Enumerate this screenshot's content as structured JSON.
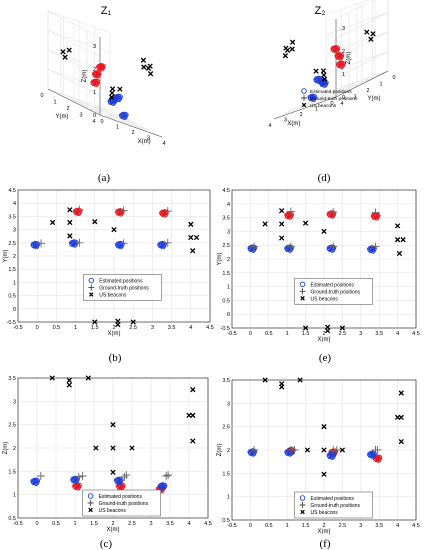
{
  "figure": {
    "panels": [
      {
        "id": "a",
        "caption": "(a)",
        "title": "Z₁",
        "axes": {
          "x": "X(m)",
          "y": "Y(m)",
          "z": "Z(m)"
        },
        "ticks": {
          "z": [
            "0",
            "1",
            "2",
            "3"
          ],
          "y": [
            "4",
            "3",
            "2",
            "1",
            "0"
          ],
          "x": [
            "0",
            "1",
            "2",
            "3",
            "4"
          ]
        }
      },
      {
        "id": "d",
        "caption": "(d)",
        "title": "Z₂",
        "axes": {
          "x": "X(m)",
          "y": "Y(m)",
          "z": "Z(m)"
        },
        "ticks": {
          "z": [
            "0",
            "1",
            "2",
            "3"
          ],
          "y": [
            "4",
            "3",
            "2",
            "1",
            "0"
          ],
          "x": [
            "0",
            "1",
            "2",
            "3",
            "4"
          ]
        }
      }
    ],
    "legend": {
      "estimated": "Estimated positions",
      "ground_truth": "Ground-truth positions",
      "beacons": "US beacons"
    },
    "colors": {
      "red": "#e8141e",
      "blue": "#1f3fd6",
      "black": "#000000",
      "grid": "#e3e3e3"
    }
  },
  "chart_data": [
    {
      "type": "scatter",
      "panel": "b",
      "caption": "(b)",
      "xlabel": "X(m)",
      "ylabel": "Y(m)",
      "xlim": [
        -0.5,
        4.5
      ],
      "ylim": [
        -0.5,
        4.5
      ],
      "xticks": [
        "-0.5",
        "0",
        "0.5",
        "1",
        "1.5",
        "2",
        "2.5",
        "3",
        "3.5",
        "4",
        "4.5"
      ],
      "yticks": [
        "-0.5",
        "0",
        "0.5",
        "1",
        "1.5",
        "2",
        "2.5",
        "3",
        "3.5",
        "4",
        "4.5"
      ],
      "series": [
        {
          "name": "Estimated positions",
          "color": "red",
          "clusters": [
            [
              1.05,
              3.68
            ],
            [
              2.15,
              3.66
            ],
            [
              3.3,
              3.62
            ]
          ]
        },
        {
          "name": "Estimated positions",
          "color": "blue",
          "clusters": [
            [
              -0.05,
              2.42
            ],
            [
              0.95,
              2.48
            ],
            [
              2.15,
              2.42
            ],
            [
              3.25,
              2.42
            ]
          ]
        },
        {
          "name": "Ground-truth positions",
          "points": [
            [
              0.1,
              2.48
            ],
            [
              1.1,
              3.75
            ],
            [
              1.1,
              2.5
            ],
            [
              2.25,
              3.72
            ],
            [
              2.25,
              2.48
            ],
            [
              3.4,
              3.7
            ],
            [
              3.4,
              2.5
            ]
          ]
        },
        {
          "name": "US beacons",
          "points": [
            [
              0.4,
              3.27
            ],
            [
              0.85,
              3.75
            ],
            [
              0.85,
              3.27
            ],
            [
              0.85,
              2.76
            ],
            [
              1.5,
              3.3
            ],
            [
              2.0,
              3.0
            ],
            [
              1.5,
              -0.5
            ],
            [
              2.1,
              -0.47
            ],
            [
              2.1,
              -0.6
            ],
            [
              2.5,
              -0.5
            ],
            [
              4.0,
              3.2
            ],
            [
              4.0,
              2.7
            ],
            [
              4.15,
              2.7
            ],
            [
              4.05,
              2.2
            ]
          ]
        }
      ],
      "legend_position": "lower-middle"
    },
    {
      "type": "scatter",
      "panel": "e",
      "caption": "(e)",
      "xlabel": "X(m)",
      "ylabel": "Y(m)",
      "xlim": [
        -0.5,
        4.5
      ],
      "ylim": [
        -0.5,
        4.5
      ],
      "xticks": [
        "-0.5",
        "0",
        "0.5",
        "1",
        "1.5",
        "2",
        "2.5",
        "3",
        "3.5",
        "4",
        "4.5"
      ],
      "yticks": [
        "-0.5",
        "0",
        "0.5",
        "1",
        "1.5",
        "2",
        "2.5",
        "3",
        "3.5",
        "4",
        "4.5"
      ],
      "series": [
        {
          "name": "Estimated positions",
          "color": "red",
          "clusters": [
            [
              1.05,
              3.58
            ],
            [
              2.2,
              3.62
            ],
            [
              3.4,
              3.55
            ]
          ]
        },
        {
          "name": "Estimated positions",
          "color": "blue",
          "clusters": [
            [
              0.05,
              2.38
            ],
            [
              1.05,
              2.38
            ],
            [
              2.2,
              2.38
            ],
            [
              3.3,
              2.35
            ]
          ]
        },
        {
          "name": "Ground-truth positions",
          "points": [
            [
              0.1,
              2.45
            ],
            [
              1.1,
              3.72
            ],
            [
              1.1,
              2.45
            ],
            [
              2.25,
              3.7
            ],
            [
              2.25,
              2.45
            ],
            [
              3.4,
              3.68
            ],
            [
              3.4,
              2.45
            ]
          ]
        },
        {
          "name": "US beacons",
          "points": [
            [
              0.4,
              3.27
            ],
            [
              0.85,
              3.75
            ],
            [
              0.85,
              3.27
            ],
            [
              0.85,
              2.76
            ],
            [
              1.5,
              3.3
            ],
            [
              2.0,
              3.0
            ],
            [
              1.5,
              -0.5
            ],
            [
              2.1,
              -0.47
            ],
            [
              2.1,
              -0.6
            ],
            [
              2.5,
              -0.5
            ],
            [
              4.0,
              3.2
            ],
            [
              4.0,
              2.7
            ],
            [
              4.15,
              2.7
            ],
            [
              4.05,
              2.2
            ]
          ]
        }
      ],
      "legend_position": "lower-middle"
    },
    {
      "type": "scatter",
      "panel": "c",
      "caption": "(c)",
      "xlabel": "X(m)",
      "ylabel": "Z(m)",
      "xlim": [
        -0.5,
        4.5
      ],
      "ylim": [
        0.5,
        3.5
      ],
      "xticks": [
        "-0.5",
        "0",
        "0.5",
        "1",
        "1.5",
        "2",
        "2.5",
        "3",
        "3.5",
        "4",
        "4.5"
      ],
      "yticks": [
        "0.5",
        "1",
        "1.5",
        "2",
        "2.5",
        "3",
        "3.5"
      ],
      "series": [
        {
          "name": "Estimated positions",
          "color": "red",
          "clusters": [
            [
              1.05,
              1.18
            ],
            [
              2.2,
              1.18
            ],
            [
              3.25,
              1.12
            ]
          ]
        },
        {
          "name": "Estimated positions",
          "color": "blue",
          "clusters": [
            [
              -0.05,
              1.28
            ],
            [
              1.0,
              1.32
            ],
            [
              2.15,
              1.3
            ],
            [
              3.3,
              1.18
            ]
          ]
        },
        {
          "name": "Ground-truth positions",
          "points": [
            [
              0.1,
              1.4
            ],
            [
              1.1,
              1.38
            ],
            [
              1.2,
              1.4
            ],
            [
              2.3,
              1.38
            ],
            [
              2.35,
              1.42
            ],
            [
              3.4,
              1.4
            ],
            [
              3.45,
              1.42
            ]
          ]
        },
        {
          "name": "US beacons",
          "points": [
            [
              0.4,
              3.5
            ],
            [
              0.85,
              3.45
            ],
            [
              0.85,
              3.35
            ],
            [
              1.35,
              3.5
            ],
            [
              1.55,
              2.0
            ],
            [
              2.0,
              2.5
            ],
            [
              2.0,
              2.0
            ],
            [
              2.5,
              2.0
            ],
            [
              2.0,
              1.48
            ],
            [
              4.0,
              2.7
            ],
            [
              4.1,
              2.7
            ],
            [
              4.1,
              3.25
            ],
            [
              4.1,
              2.15
            ]
          ]
        }
      ],
      "legend_position": "lower-middle"
    },
    {
      "type": "scatter",
      "panel": "f",
      "caption": "(f)",
      "xlabel": "X(m)",
      "ylabel": "Z(m)",
      "xlim": [
        -0.5,
        4.5
      ],
      "ylim": [
        0.5,
        3.5
      ],
      "xticks": [
        "-0.5",
        "0",
        "0.5",
        "1",
        "1.5",
        "2",
        "2.5",
        "3",
        "3.5",
        "4",
        "4.5"
      ],
      "yticks": [
        "0.5",
        "1",
        "1.5",
        "2",
        "2.5",
        "3",
        "3.5"
      ],
      "series": [
        {
          "name": "Estimated positions",
          "color": "red",
          "clusters": [
            [
              1.1,
              1.98
            ],
            [
              2.25,
              1.95
            ],
            [
              3.45,
              1.82
            ]
          ]
        },
        {
          "name": "Estimated positions",
          "color": "blue",
          "clusters": [
            [
              0.05,
              1.95
            ],
            [
              1.05,
              1.95
            ],
            [
              2.2,
              1.88
            ],
            [
              3.3,
              1.9
            ]
          ]
        },
        {
          "name": "Ground-truth positions",
          "points": [
            [
              0.1,
              2.0
            ],
            [
              1.1,
              2.0
            ],
            [
              1.2,
              2.0
            ],
            [
              2.25,
              2.0
            ],
            [
              2.35,
              2.0
            ],
            [
              3.4,
              2.0
            ],
            [
              3.45,
              2.0
            ]
          ]
        },
        {
          "name": "US beacons",
          "points": [
            [
              0.4,
              3.5
            ],
            [
              0.85,
              3.42
            ],
            [
              0.85,
              3.35
            ],
            [
              1.35,
              3.5
            ],
            [
              1.55,
              2.0
            ],
            [
              2.0,
              2.5
            ],
            [
              2.0,
              2.0
            ],
            [
              2.5,
              2.0
            ],
            [
              2.0,
              1.48
            ],
            [
              4.0,
              2.7
            ],
            [
              4.1,
              2.7
            ],
            [
              4.1,
              3.22
            ],
            [
              4.1,
              2.18
            ]
          ]
        }
      ],
      "legend_position": "lower-middle"
    }
  ]
}
